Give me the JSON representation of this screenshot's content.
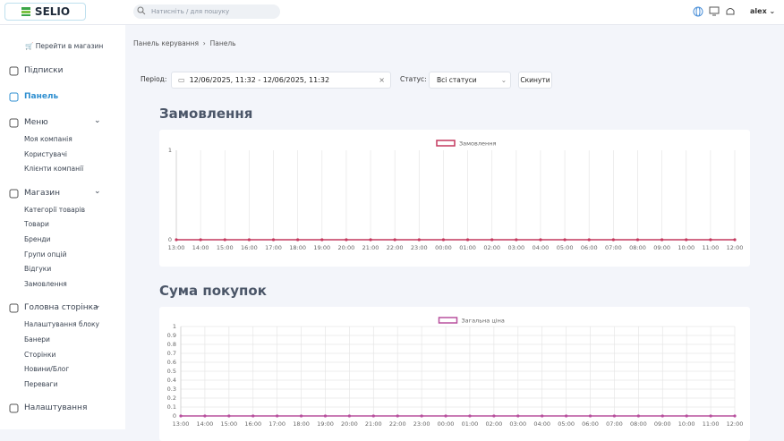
{
  "header": {
    "logo": "SELIO",
    "search_placeholder": "Натисніть / для пошуку",
    "user": "alex"
  },
  "sidebar": {
    "shop_link": "Перейти в магазин",
    "sections": [
      {
        "label": "Підписки"
      },
      {
        "label": "Панель"
      },
      {
        "label": "Меню",
        "items": [
          "Моя компанія",
          "Користувачі",
          "Клієнти компанії"
        ]
      },
      {
        "label": "Магазин",
        "items": [
          "Категорії товарів",
          "Товари",
          "Бренди",
          "Групи опцій",
          "Відгуки",
          "Замовлення"
        ]
      },
      {
        "label": "Головна сторінка",
        "items": [
          "Налаштування блоку",
          "Банери",
          "Сторінки",
          "Новини/Блог",
          "Переваги"
        ]
      },
      {
        "label": "Налаштування"
      }
    ]
  },
  "breadcrumbs": [
    "Панель керування",
    "Панель"
  ],
  "filters": {
    "period_label": "Період:",
    "period_value": "12/06/2025, 11:32 - 12/06/2025, 11:32",
    "status_label": "Статус:",
    "status_value": "Всі статуси",
    "reset": "Скинути"
  },
  "chart_data": [
    {
      "type": "line",
      "title": "Замовлення",
      "categories": [
        "13:00",
        "14:00",
        "15:00",
        "16:00",
        "17:00",
        "18:00",
        "19:00",
        "20:00",
        "21:00",
        "22:00",
        "23:00",
        "00:00",
        "01:00",
        "02:00",
        "03:00",
        "04:00",
        "05:00",
        "06:00",
        "07:00",
        "08:00",
        "09:00",
        "10:00",
        "11:00",
        "12:00"
      ],
      "series": [
        {
          "name": "Замовлення",
          "color": "#c4395e",
          "values": [
            0,
            0,
            0,
            0,
            0,
            0,
            0,
            0,
            0,
            0,
            0,
            0,
            0,
            0,
            0,
            0,
            0,
            0,
            0,
            0,
            0,
            0,
            0,
            0
          ]
        }
      ],
      "ylim": [
        0,
        1
      ],
      "yticks": [
        0,
        1
      ],
      "grid": "x",
      "legend": "top"
    },
    {
      "type": "line",
      "title": "Сума покупок",
      "categories": [
        "13:00",
        "14:00",
        "15:00",
        "16:00",
        "17:00",
        "18:00",
        "19:00",
        "20:00",
        "21:00",
        "22:00",
        "23:00",
        "00:00",
        "01:00",
        "02:00",
        "03:00",
        "04:00",
        "05:00",
        "06:00",
        "07:00",
        "08:00",
        "09:00",
        "10:00",
        "11:00",
        "12:00"
      ],
      "series": [
        {
          "name": "Загальна ціна",
          "color": "#b8509e",
          "values": [
            0,
            0,
            0,
            0,
            0,
            0,
            0,
            0,
            0,
            0,
            0,
            0,
            0,
            0,
            0,
            0,
            0,
            0,
            0,
            0,
            0,
            0,
            0,
            0
          ]
        }
      ],
      "ylim": [
        0,
        1
      ],
      "yticks": [
        0,
        0.1,
        0.2,
        0.3,
        0.4,
        0.5,
        0.6,
        0.7,
        0.8,
        0.9,
        1
      ],
      "grid": "both",
      "legend": "top"
    }
  ]
}
